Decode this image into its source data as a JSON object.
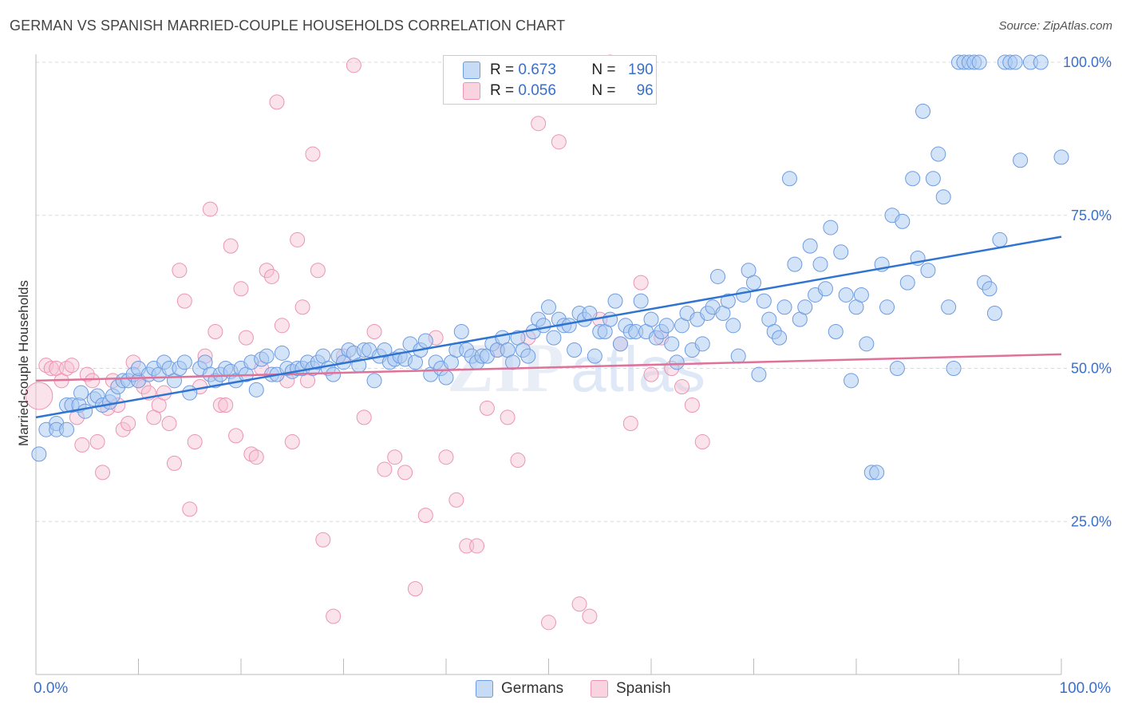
{
  "header": {
    "title": "GERMAN VS SPANISH MARRIED-COUPLE HOUSEHOLDS CORRELATION CHART",
    "source": "Source: ZipAtlas.com"
  },
  "legend": {
    "rows": [
      {
        "r_label": "R = ",
        "r_value": "0.673",
        "n_label": "N = ",
        "n_value": "190",
        "color": "#9ec1f0"
      },
      {
        "r_label": "R = ",
        "r_value": "0.056",
        "n_label": "N = ",
        "n_value": "96",
        "color": "#f5b3c8"
      }
    ]
  },
  "bottom_legend": {
    "germans": "Germans",
    "spanish": "Spanish"
  },
  "x_axis": {
    "left_label": "0.0%",
    "right_label": "100.0%"
  },
  "colors": {
    "blue_fill": "#aac9f2",
    "blue_stroke": "#6d9be0",
    "blue_line": "#2f74d0",
    "pink_fill": "#f7c1d3",
    "pink_stroke": "#ec94b3",
    "pink_line": "#e0729a",
    "accent_text": "#3a6fc9"
  },
  "chart_data": {
    "type": "scatter",
    "title": "GERMAN VS SPANISH MARRIED-COUPLE HOUSEHOLDS CORRELATION CHART",
    "xlabel": "",
    "ylabel": "Married-couple Households",
    "xlim": [
      0,
      100
    ],
    "ylim": [
      0,
      105
    ],
    "y_ticks": [
      {
        "v": 25,
        "label": "25.0%"
      },
      {
        "v": 50,
        "label": "50.0%"
      },
      {
        "v": 75,
        "label": "75.0%"
      },
      {
        "v": 100,
        "label": "100.0%"
      }
    ],
    "grid": true,
    "legend_position": "top-center",
    "series": [
      {
        "name": "Germans",
        "color": "#6d9be0",
        "trend": [
          [
            0,
            42.0
          ],
          [
            100,
            71.5
          ]
        ],
        "points": [
          [
            0.3,
            36
          ],
          [
            1.0,
            40
          ],
          [
            2,
            41
          ],
          [
            2,
            40
          ],
          [
            3,
            40
          ],
          [
            3,
            44
          ],
          [
            3.5,
            44
          ],
          [
            4.2,
            44
          ],
          [
            4.4,
            46
          ],
          [
            4.8,
            43
          ],
          [
            5.7,
            45
          ],
          [
            6.0,
            45.5
          ],
          [
            6.5,
            44
          ],
          [
            7.2,
            44.5
          ],
          [
            7.5,
            45.5
          ],
          [
            8.0,
            47
          ],
          [
            8.5,
            48
          ],
          [
            9.0,
            48
          ],
          [
            9.5,
            49
          ],
          [
            10,
            48
          ],
          [
            10,
            50
          ],
          [
            11,
            49
          ],
          [
            11.5,
            50
          ],
          [
            12,
            49
          ],
          [
            12.5,
            51
          ],
          [
            13,
            50
          ],
          [
            13.5,
            48
          ],
          [
            14,
            50
          ],
          [
            14.5,
            51
          ],
          [
            15,
            46
          ],
          [
            16,
            50
          ],
          [
            16.5,
            51
          ],
          [
            17,
            49
          ],
          [
            17.5,
            48
          ],
          [
            18,
            49
          ],
          [
            18.5,
            50
          ],
          [
            19,
            49.5
          ],
          [
            19.5,
            48
          ],
          [
            20,
            50
          ],
          [
            20.5,
            49
          ],
          [
            21,
            51
          ],
          [
            21.5,
            46.5
          ],
          [
            22,
            51.5
          ],
          [
            22.5,
            52
          ],
          [
            23,
            49
          ],
          [
            23.5,
            49
          ],
          [
            24,
            52.5
          ],
          [
            24.5,
            50
          ],
          [
            25,
            49.5
          ],
          [
            25.5,
            50
          ],
          [
            26,
            50
          ],
          [
            26.5,
            51
          ],
          [
            27,
            50
          ],
          [
            27.5,
            51
          ],
          [
            28,
            52
          ],
          [
            28.5,
            50
          ],
          [
            29,
            49
          ],
          [
            29.5,
            52
          ],
          [
            30,
            51
          ],
          [
            30.5,
            53
          ],
          [
            31,
            52.5
          ],
          [
            31.5,
            50.5
          ],
          [
            32,
            53
          ],
          [
            32.5,
            53
          ],
          [
            33,
            48
          ],
          [
            33.5,
            52
          ],
          [
            34,
            53
          ],
          [
            34.5,
            51
          ],
          [
            35,
            51.5
          ],
          [
            35.5,
            52
          ],
          [
            36,
            51.5
          ],
          [
            36.5,
            54
          ],
          [
            37,
            51
          ],
          [
            37.5,
            53
          ],
          [
            38,
            54.5
          ],
          [
            38.5,
            49
          ],
          [
            39,
            51
          ],
          [
            39.5,
            50
          ],
          [
            40,
            48.5
          ],
          [
            40.5,
            51
          ],
          [
            41,
            53
          ],
          [
            41.5,
            56
          ],
          [
            42,
            53
          ],
          [
            42.5,
            52
          ],
          [
            43,
            51
          ],
          [
            43.5,
            52
          ],
          [
            44,
            52
          ],
          [
            44.5,
            54
          ],
          [
            45,
            53
          ],
          [
            45.5,
            55
          ],
          [
            46,
            53
          ],
          [
            46.5,
            51
          ],
          [
            47,
            55
          ],
          [
            47.5,
            53
          ],
          [
            48,
            52
          ],
          [
            48.5,
            56
          ],
          [
            49,
            58
          ],
          [
            49.5,
            57
          ],
          [
            50,
            60
          ],
          [
            50.5,
            55
          ],
          [
            51,
            58
          ],
          [
            51.5,
            57
          ],
          [
            52,
            57
          ],
          [
            52.5,
            53
          ],
          [
            53,
            59
          ],
          [
            53.5,
            58
          ],
          [
            54,
            59
          ],
          [
            54.5,
            52
          ],
          [
            55,
            56
          ],
          [
            55.5,
            56
          ],
          [
            56,
            58
          ],
          [
            56.5,
            61
          ],
          [
            57,
            54
          ],
          [
            57.5,
            57
          ],
          [
            58,
            56
          ],
          [
            58.5,
            56
          ],
          [
            59,
            61
          ],
          [
            59.5,
            56
          ],
          [
            60,
            58
          ],
          [
            60.5,
            55
          ],
          [
            61,
            56
          ],
          [
            61.5,
            57
          ],
          [
            62,
            54
          ],
          [
            62.5,
            51
          ],
          [
            63,
            57
          ],
          [
            63.5,
            59
          ],
          [
            64,
            53
          ],
          [
            64.5,
            58
          ],
          [
            65,
            54
          ],
          [
            65.5,
            59
          ],
          [
            66,
            60
          ],
          [
            66.5,
            65
          ],
          [
            67,
            59
          ],
          [
            67.5,
            61
          ],
          [
            68,
            57
          ],
          [
            68.5,
            52
          ],
          [
            69,
            62
          ],
          [
            69.5,
            66
          ],
          [
            70,
            64
          ],
          [
            70.5,
            49
          ],
          [
            71,
            61
          ],
          [
            71.5,
            58
          ],
          [
            72,
            56
          ],
          [
            72.5,
            55
          ],
          [
            73,
            60
          ],
          [
            73.5,
            81
          ],
          [
            74,
            67
          ],
          [
            74.5,
            58
          ],
          [
            75,
            60
          ],
          [
            75.5,
            70
          ],
          [
            76,
            62
          ],
          [
            76.5,
            67
          ],
          [
            77,
            63
          ],
          [
            77.5,
            73
          ],
          [
            78,
            56
          ],
          [
            78.5,
            69
          ],
          [
            79,
            62
          ],
          [
            79.5,
            48
          ],
          [
            80,
            60
          ],
          [
            80.5,
            62
          ],
          [
            81,
            54
          ],
          [
            81.5,
            33
          ],
          [
            82,
            33
          ],
          [
            82.5,
            67
          ],
          [
            83,
            60
          ],
          [
            83.5,
            75
          ],
          [
            84,
            50
          ],
          [
            84.5,
            74
          ],
          [
            85,
            64
          ],
          [
            85.5,
            81
          ],
          [
            86,
            68
          ],
          [
            86.5,
            92
          ],
          [
            87,
            66
          ],
          [
            87.5,
            81
          ],
          [
            88,
            85
          ],
          [
            88.5,
            78
          ],
          [
            89,
            60
          ],
          [
            89.5,
            50
          ],
          [
            90,
            100
          ],
          [
            90.5,
            100
          ],
          [
            91,
            100
          ],
          [
            91.5,
            100
          ],
          [
            92,
            100
          ],
          [
            92.5,
            64
          ],
          [
            93,
            63
          ],
          [
            93.5,
            59
          ],
          [
            94,
            71
          ],
          [
            94.5,
            100
          ],
          [
            95,
            100
          ],
          [
            95.5,
            100
          ],
          [
            96,
            84
          ],
          [
            97,
            100
          ],
          [
            98,
            100
          ],
          [
            100,
            84.5
          ]
        ]
      },
      {
        "name": "Spanish",
        "color": "#ec94b3",
        "trend": [
          [
            0,
            48.0
          ],
          [
            100,
            52.3
          ]
        ],
        "points": [
          [
            0.3,
            45.5
          ],
          [
            1,
            50.5
          ],
          [
            1.5,
            50
          ],
          [
            2,
            50
          ],
          [
            2.5,
            48
          ],
          [
            3,
            50
          ],
          [
            3.5,
            50.5
          ],
          [
            4,
            42
          ],
          [
            4.5,
            37.5
          ],
          [
            5,
            49
          ],
          [
            5.5,
            48
          ],
          [
            6,
            38
          ],
          [
            6.5,
            33
          ],
          [
            7,
            43.5
          ],
          [
            7.5,
            48
          ],
          [
            8,
            44
          ],
          [
            8.5,
            40
          ],
          [
            9,
            41
          ],
          [
            9.5,
            51
          ],
          [
            10,
            48
          ],
          [
            10.5,
            47
          ],
          [
            11,
            46
          ],
          [
            11.5,
            42
          ],
          [
            12,
            44
          ],
          [
            12.5,
            46
          ],
          [
            13,
            41
          ],
          [
            13.5,
            34.5
          ],
          [
            14,
            66
          ],
          [
            14.5,
            61
          ],
          [
            15,
            27
          ],
          [
            15.5,
            38
          ],
          [
            16,
            47
          ],
          [
            16.5,
            52
          ],
          [
            17,
            76
          ],
          [
            17.5,
            56
          ],
          [
            18,
            44
          ],
          [
            18.5,
            44
          ],
          [
            19,
            70
          ],
          [
            19.5,
            39
          ],
          [
            20,
            63
          ],
          [
            20.5,
            55
          ],
          [
            21,
            36
          ],
          [
            21.5,
            35.5
          ],
          [
            22,
            50
          ],
          [
            22.5,
            66
          ],
          [
            23,
            65
          ],
          [
            23.5,
            93.5
          ],
          [
            24,
            57
          ],
          [
            24.5,
            48
          ],
          [
            25,
            38
          ],
          [
            25.5,
            71
          ],
          [
            26,
            60
          ],
          [
            26.5,
            48
          ],
          [
            27,
            85
          ],
          [
            27.5,
            66
          ],
          [
            28,
            22
          ],
          [
            29,
            9.5
          ],
          [
            30,
            52
          ],
          [
            31,
            99.5
          ],
          [
            32,
            42
          ],
          [
            33,
            56
          ],
          [
            34,
            33.5
          ],
          [
            35,
            35.5
          ],
          [
            36,
            33
          ],
          [
            37,
            14
          ],
          [
            38,
            26
          ],
          [
            39,
            55
          ],
          [
            40,
            35.5
          ],
          [
            41,
            28.5
          ],
          [
            42,
            21
          ],
          [
            43,
            21
          ],
          [
            44,
            43.5
          ],
          [
            45,
            53
          ],
          [
            46,
            42
          ],
          [
            47,
            35
          ],
          [
            48,
            55
          ],
          [
            49,
            90
          ],
          [
            50,
            8.5
          ],
          [
            51,
            87
          ],
          [
            52,
            99.5
          ],
          [
            53,
            11.5
          ],
          [
            54,
            9.5
          ],
          [
            55,
            58
          ],
          [
            56,
            100
          ],
          [
            57,
            54
          ],
          [
            58,
            41
          ],
          [
            59,
            64
          ],
          [
            60,
            49
          ],
          [
            61,
            55
          ],
          [
            62,
            50
          ],
          [
            63,
            47
          ],
          [
            64,
            44
          ],
          [
            65,
            38
          ]
        ]
      }
    ]
  }
}
